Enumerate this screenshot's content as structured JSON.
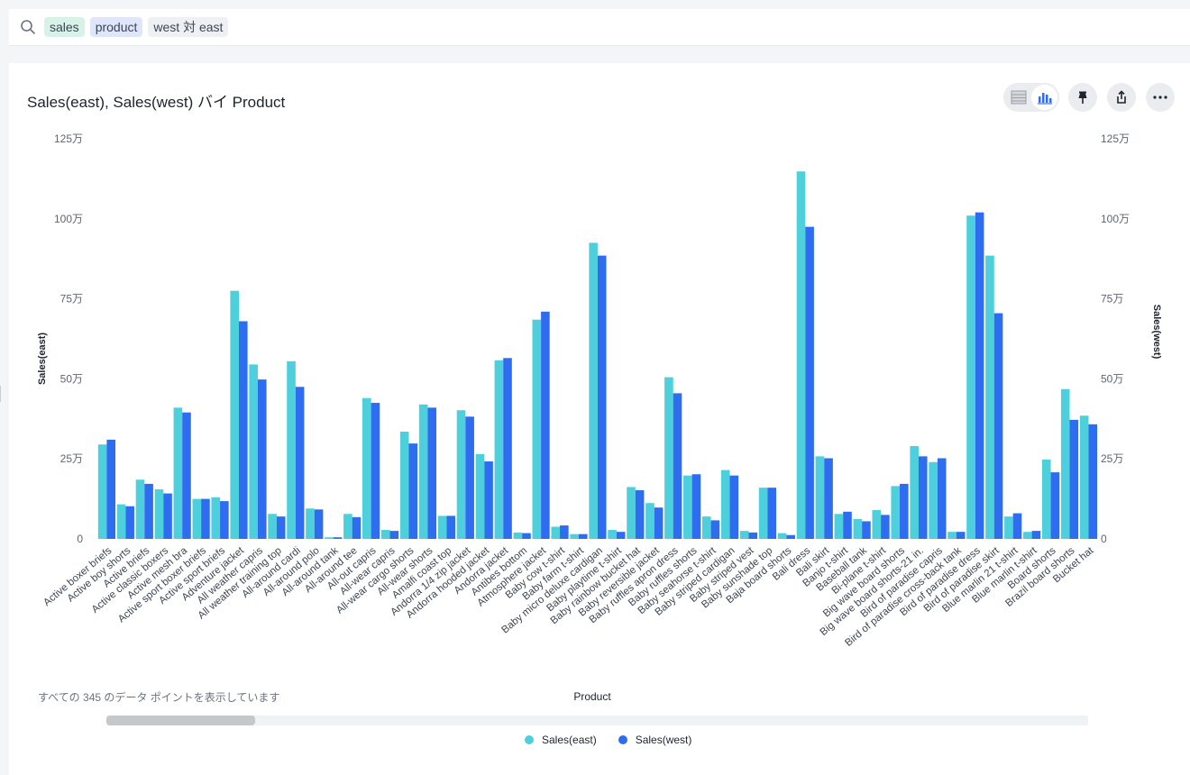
{
  "search": {
    "tokens": [
      {
        "label": "sales",
        "kind": "green"
      },
      {
        "label": "product",
        "kind": "blue"
      },
      {
        "label": "west 対 east",
        "kind": "gray"
      }
    ]
  },
  "card": {
    "title": "Sales(east), Sales(west) バイ Product",
    "footer_note": "すべての 345 のデータ ポイントを表示しています"
  },
  "toolbar": {
    "icons": [
      "table-view-icon",
      "chart-view-icon",
      "pin-icon",
      "share-icon",
      "more-icon"
    ]
  },
  "colors": {
    "east": "#4dd0dc",
    "west": "#2f6df0"
  },
  "chart_data": {
    "type": "bar",
    "title": "Sales(east), Sales(west) バイ Product",
    "xlabel": "Product",
    "ylabel_left": "Sales(east)",
    "ylabel_right": "Sales(west)",
    "ylim": [
      0,
      1250000
    ],
    "yticks": [
      0,
      250000,
      500000,
      750000,
      1000000,
      1250000
    ],
    "ytick_labels": [
      "0",
      "25万",
      "50万",
      "75万",
      "100万",
      "125万"
    ],
    "legend_position": "bottom",
    "categories": [
      "Active boxer briefs",
      "Active boy shorts",
      "Active briefs",
      "Active classic boxers",
      "Active mesh bra",
      "Active sport boxer briefs",
      "Active sport briefs",
      "Adventure jacket",
      "All weather capris",
      "All weather training top",
      "All-around cardi",
      "All-around polo",
      "All-around tank",
      "All-around tee",
      "All-out capris",
      "All-wear capris",
      "All-wear cargo shorts",
      "All-wear shorts",
      "Amalfi coast top",
      "Andorra 1/4 zip jacket",
      "Andorra hooded jacket",
      "Andorra jacket",
      "Antibes bottom",
      "Atmosphere jacket",
      "Baby cow t-shirt",
      "Baby farm t-shirt",
      "Baby micro deluxe cardigan",
      "Baby playtime t-shirt",
      "Baby rainbow bucket hat",
      "Baby reversible jacket",
      "Baby ruffles apron dress",
      "Baby ruffles shorts",
      "Baby seahorse t-shirt",
      "Baby striped cardigan",
      "Baby striped vest",
      "Baby sunshade top",
      "Baja board shorts",
      "Bali dress",
      "Bali skirt",
      "Banjo t-shirt",
      "Baseball tank",
      "Bi-plane t-shirt",
      "Big wave board shorts",
      "Big wave board shorts-21 in.",
      "Bird of paradise capris",
      "Bird of paradise cross-back tank",
      "Bird of paradise dress",
      "Bird of paradise skirt",
      "Blue marlin 21 t-shirt",
      "Blue marlin t-shirt",
      "Board shorts",
      "Brazil board shorts",
      "Bucket hat"
    ],
    "series": [
      {
        "name": "Sales(east)",
        "values": [
          295000,
          108000,
          185000,
          155000,
          410000,
          125000,
          130000,
          775000,
          545000,
          78000,
          555000,
          95000,
          5000,
          78000,
          440000,
          28000,
          335000,
          420000,
          72000,
          402000,
          265000,
          558000,
          20000,
          685000,
          38000,
          15000,
          925000,
          28000,
          162000,
          112000,
          505000,
          198000,
          70000,
          215000,
          25000,
          160000,
          18000,
          1148000,
          258000,
          78000,
          62000,
          90000,
          165000,
          290000,
          240000,
          22000,
          1010000,
          885000,
          70000,
          22000,
          248000,
          468000,
          385000
        ]
      },
      {
        "name": "Sales(west)",
        "values": [
          310000,
          102000,
          172000,
          142000,
          395000,
          125000,
          118000,
          680000,
          498000,
          70000,
          475000,
          92000,
          5000,
          68000,
          425000,
          25000,
          298000,
          410000,
          72000,
          382000,
          242000,
          565000,
          18000,
          710000,
          42000,
          15000,
          885000,
          22000,
          152000,
          98000,
          455000,
          202000,
          58000,
          198000,
          20000,
          160000,
          12000,
          975000,
          252000,
          85000,
          55000,
          75000,
          172000,
          258000,
          252000,
          22000,
          1020000,
          705000,
          80000,
          25000,
          208000,
          372000,
          358000
        ]
      }
    ]
  }
}
